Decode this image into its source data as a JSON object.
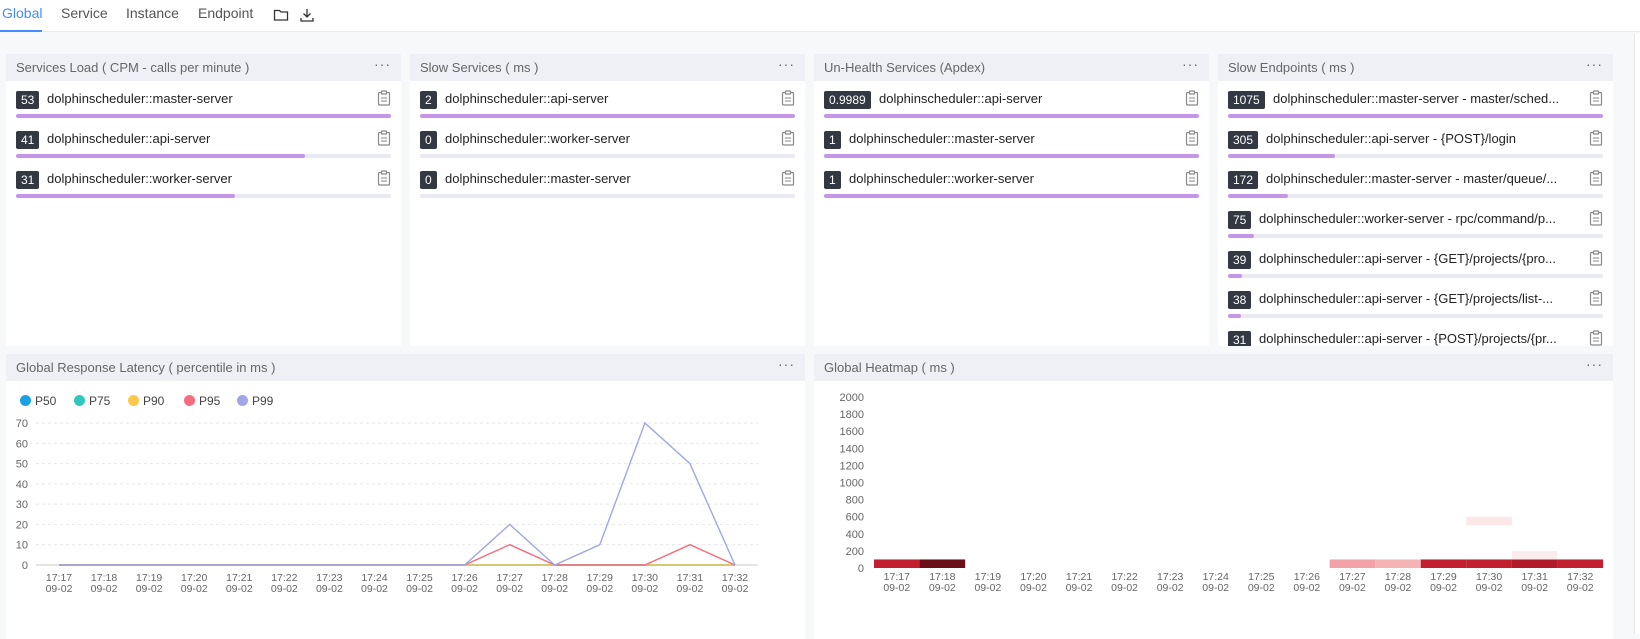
{
  "tabs": [
    {
      "label": "Global",
      "active": true
    },
    {
      "label": "Service",
      "active": false
    },
    {
      "label": "Instance",
      "active": false
    },
    {
      "label": "Endpoint",
      "active": false
    }
  ],
  "toolbar_icons": [
    "folder-icon",
    "download-icon"
  ],
  "panels": {
    "services_load": {
      "title": "Services Load ( CPM - calls per minute )",
      "menu": "···",
      "items": [
        {
          "value": "53",
          "label": "dolphinscheduler::master-server",
          "fraction": 1.0
        },
        {
          "value": "41",
          "label": "dolphinscheduler::api-server",
          "fraction": 0.77
        },
        {
          "value": "31",
          "label": "dolphinscheduler::worker-server",
          "fraction": 0.585
        }
      ]
    },
    "slow_services": {
      "title": "Slow Services ( ms )",
      "menu": "···",
      "items": [
        {
          "value": "2",
          "label": "dolphinscheduler::api-server",
          "fraction": 1.0
        },
        {
          "value": "0",
          "label": "dolphinscheduler::worker-server",
          "fraction": 0.0
        },
        {
          "value": "0",
          "label": "dolphinscheduler::master-server",
          "fraction": 0.0
        }
      ]
    },
    "unhealth_services": {
      "title": "Un-Health Services (Apdex)",
      "menu": "···",
      "items": [
        {
          "value": "0.9989",
          "label": "dolphinscheduler::api-server",
          "fraction": 1.0
        },
        {
          "value": "1",
          "label": "dolphinscheduler::master-server",
          "fraction": 1.0
        },
        {
          "value": "1",
          "label": "dolphinscheduler::worker-server",
          "fraction": 1.0
        }
      ]
    },
    "slow_endpoints": {
      "title": "Slow Endpoints ( ms )",
      "menu": "···",
      "items": [
        {
          "value": "1075",
          "label": "dolphinscheduler::master-server - master/sched...",
          "fraction": 1.0
        },
        {
          "value": "305",
          "label": "dolphinscheduler::api-server - {POST}/login",
          "fraction": 0.284
        },
        {
          "value": "172",
          "label": "dolphinscheduler::master-server - master/queue/...",
          "fraction": 0.16
        },
        {
          "value": "75",
          "label": "dolphinscheduler::worker-server - rpc/command/p...",
          "fraction": 0.07
        },
        {
          "value": "39",
          "label": "dolphinscheduler::api-server - {GET}/projects/{pro...",
          "fraction": 0.036
        },
        {
          "value": "38",
          "label": "dolphinscheduler::api-server - {GET}/projects/list-...",
          "fraction": 0.035
        },
        {
          "value": "31",
          "label": "dolphinscheduler::api-server - {POST}/projects/{pr...",
          "fraction": 0.029
        }
      ]
    },
    "latency": {
      "title": "Global Response Latency ( percentile in ms )",
      "menu": "···"
    },
    "heatmap": {
      "title": "Global Heatmap ( ms )",
      "menu": "···"
    }
  },
  "chart_data": [
    {
      "type": "line",
      "x": [
        "17:17\n09-02",
        "17:18\n09-02",
        "17:19\n09-02",
        "17:20\n09-02",
        "17:21\n09-02",
        "17:22\n09-02",
        "17:23\n09-02",
        "17:24\n09-02",
        "17:25\n09-02",
        "17:26\n09-02",
        "17:27\n09-02",
        "17:28\n09-02",
        "17:29\n09-02",
        "17:30\n09-02",
        "17:31\n09-02",
        "17:32\n09-02"
      ],
      "series": [
        {
          "name": "P50",
          "color": "#1aa0e6",
          "values": [
            0,
            0,
            0,
            0,
            0,
            0,
            0,
            0,
            0,
            0,
            0,
            0,
            0,
            0,
            0,
            0
          ]
        },
        {
          "name": "P75",
          "color": "#2fc7c0",
          "values": [
            0,
            0,
            0,
            0,
            0,
            0,
            0,
            0,
            0,
            0,
            0,
            0,
            0,
            0,
            0,
            0
          ]
        },
        {
          "name": "P90",
          "color": "#fcc84e",
          "values": [
            0,
            0,
            0,
            0,
            0,
            0,
            0,
            0,
            0,
            0,
            0,
            0,
            0,
            0,
            0,
            0
          ]
        },
        {
          "name": "P95",
          "color": "#f56d7e",
          "values": [
            0,
            0,
            0,
            0,
            0,
            0,
            0,
            0,
            0,
            0,
            10,
            0,
            0,
            0,
            10,
            0
          ]
        },
        {
          "name": "P99",
          "color": "#a0a7e6",
          "values": [
            0,
            0,
            0,
            0,
            0,
            0,
            0,
            0,
            0,
            0,
            20,
            0,
            10,
            70,
            50,
            0
          ]
        }
      ],
      "ylim": [
        0,
        70
      ],
      "yticks": [
        0,
        10,
        20,
        30,
        40,
        50,
        60,
        70
      ],
      "grid": true,
      "legend": "top-left"
    },
    {
      "type": "heatmap",
      "x": [
        "17:17\n09-02",
        "17:18\n09-02",
        "17:19\n09-02",
        "17:20\n09-02",
        "17:21\n09-02",
        "17:22\n09-02",
        "17:23\n09-02",
        "17:24\n09-02",
        "17:25\n09-02",
        "17:26\n09-02",
        "17:27\n09-02",
        "17:28\n09-02",
        "17:29\n09-02",
        "17:30\n09-02",
        "17:31\n09-02",
        "17:32\n09-02"
      ],
      "ylim": [
        0,
        2000
      ],
      "yticks": [
        0,
        200,
        400,
        600,
        800,
        1000,
        1200,
        1400,
        1600,
        1800,
        2000
      ],
      "bucket_size": 100,
      "cells": [
        {
          "x": 0,
          "y": 0,
          "color": "#c2202f"
        },
        {
          "x": 1,
          "y": 0,
          "color": "#6a0f18"
        },
        {
          "x": 10,
          "y": 0,
          "color": "#f2a2a6"
        },
        {
          "x": 11,
          "y": 0,
          "color": "#f5b3b6"
        },
        {
          "x": 12,
          "y": 0,
          "color": "#c2202f"
        },
        {
          "x": 13,
          "y": 0,
          "color": "#c2202f"
        },
        {
          "x": 14,
          "y": 0,
          "color": "#b01b2a"
        },
        {
          "x": 15,
          "y": 0,
          "color": "#c2202f"
        },
        {
          "x": 14,
          "y": 1,
          "color": "#fcecee"
        },
        {
          "x": 13,
          "y": 5,
          "color": "#fbe6e8"
        }
      ]
    }
  ]
}
